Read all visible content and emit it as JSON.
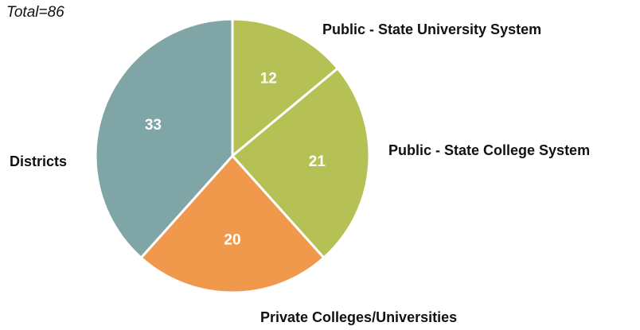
{
  "chart_data": {
    "type": "pie",
    "annotation": "Total=86",
    "categories": [
      "Public - State University System",
      "Public - State College System",
      "Private Colleges/Universities",
      "Districts"
    ],
    "values": [
      12,
      21,
      20,
      33
    ],
    "colors": [
      "#b5c154",
      "#b5c154",
      "#f0984c",
      "#7fa5a6"
    ]
  }
}
